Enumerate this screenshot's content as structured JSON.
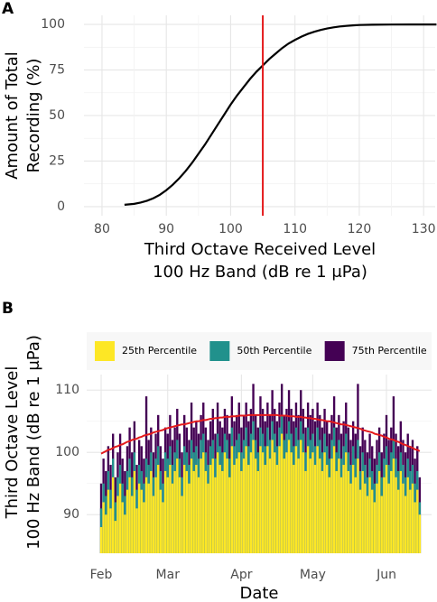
{
  "chart_data": [
    {
      "type": "line",
      "panel_label": "A",
      "ylabel": [
        "Amount of Total",
        "Recording (%)"
      ],
      "xlabel": [
        "Third Octave Received Level",
        "100 Hz Band (dB re 1 μPa)"
      ],
      "color": "#000000",
      "x": [
        83.5,
        85,
        86,
        87,
        88,
        89,
        90,
        91,
        92,
        93,
        94,
        95,
        96,
        97,
        98,
        99,
        100,
        101,
        102,
        103,
        104,
        105,
        106,
        107,
        108,
        109,
        110,
        111,
        112,
        113,
        114,
        115,
        116,
        117,
        118,
        119,
        120,
        122,
        125,
        128,
        132
      ],
      "values": [
        1,
        1.5,
        2.2,
        3.2,
        4.6,
        6.5,
        9,
        12,
        15.5,
        19.5,
        24,
        29,
        34,
        39.5,
        45,
        50.5,
        56,
        61,
        65.5,
        70,
        74,
        77.5,
        81,
        84,
        87,
        89.5,
        91.5,
        93.3,
        94.8,
        96,
        97,
        97.8,
        98.4,
        98.9,
        99.2,
        99.5,
        99.7,
        99.85,
        99.95,
        100,
        100
      ],
      "vlines": [
        105
      ],
      "vline_color": "#e41a1c",
      "xlim": [
        77.2,
        131.8
      ],
      "xticks": [
        80,
        90,
        100,
        110,
        120,
        130
      ],
      "ylim": [
        -5,
        105
      ],
      "yticks": [
        0,
        25,
        50,
        75,
        100
      ],
      "grid": true
    },
    {
      "type": "bar",
      "panel_label": "B",
      "ylabel": [
        "Third Octave Level",
        "100 Hz Band (dB re 1 μPa)"
      ],
      "xlabel": "Date",
      "categories": [
        "Feb",
        null,
        null,
        null,
        null,
        null,
        null,
        null,
        null,
        null,
        null,
        null,
        null,
        null,
        null,
        null,
        null,
        null,
        null,
        null,
        null,
        null,
        null,
        null,
        null,
        null,
        null,
        null,
        "Mar",
        null,
        null,
        null,
        null,
        null,
        null,
        null,
        null,
        null,
        null,
        null,
        null,
        null,
        null,
        null,
        null,
        null,
        null,
        null,
        null,
        null,
        null,
        null,
        null,
        null,
        null,
        null,
        null,
        null,
        null,
        "Apr",
        null,
        null,
        null,
        null,
        null,
        null,
        null,
        null,
        null,
        null,
        null,
        null,
        null,
        null,
        null,
        null,
        null,
        null,
        null,
        null,
        null,
        null,
        null,
        null,
        null,
        null,
        null,
        null,
        null,
        "May",
        null,
        null,
        null,
        null,
        null,
        null,
        null,
        null,
        null,
        null,
        null,
        null,
        null,
        null,
        null,
        null,
        null,
        null,
        null,
        null,
        null,
        null,
        null,
        null,
        null,
        null,
        null,
        null,
        null,
        null,
        "Jun",
        null,
        null,
        null,
        null,
        null,
        null,
        null,
        null,
        null,
        null,
        null,
        null,
        null,
        null
      ],
      "series": [
        {
          "name": "25th Percentile",
          "color": "#fde725",
          "values": [
            88,
            92,
            90,
            94,
            91,
            96,
            89,
            93,
            95,
            92,
            90,
            94,
            96,
            93,
            97,
            91,
            95,
            94,
            92,
            96,
            95,
            97,
            93,
            96,
            98,
            94,
            92,
            97,
            96,
            98,
            95,
            97,
            99,
            96,
            93,
            98,
            97,
            95,
            99,
            97,
            98,
            96,
            99,
            100,
            97,
            95,
            98,
            99,
            96,
            100,
            98,
            97,
            100,
            99,
            96,
            101,
            98,
            99,
            100,
            97,
            99,
            101,
            98,
            100,
            102,
            99,
            97,
            101,
            100,
            98,
            101,
            99,
            102,
            100,
            98,
            101,
            103,
            99,
            100,
            102,
            100,
            98,
            101,
            99,
            102,
            100,
            97,
            101,
            99,
            100,
            98,
            101,
            99,
            97,
            100,
            98,
            96,
            99,
            101,
            97,
            99,
            96,
            98,
            100,
            97,
            95,
            98,
            96,
            99,
            94,
            97,
            95,
            93,
            96,
            94,
            92,
            95,
            97,
            93,
            96,
            98,
            95,
            97,
            99,
            96,
            94,
            97,
            95,
            93,
            96,
            94,
            95,
            92,
            94,
            90
          ]
        },
        {
          "name": "50th Percentile",
          "color": "#21918c",
          "values": [
            91,
            95,
            93,
            97,
            94,
            99,
            92,
            96,
            98,
            95,
            93,
            97,
            99,
            96,
            100,
            94,
            98,
            97,
            95,
            99,
            98,
            100,
            96,
            99,
            101,
            97,
            95,
            100,
            99,
            101,
            98,
            100,
            102,
            99,
            96,
            101,
            100,
            98,
            102,
            100,
            101,
            99,
            102,
            103,
            100,
            98,
            101,
            102,
            99,
            103,
            101,
            100,
            103,
            102,
            99,
            104,
            101,
            102,
            103,
            100,
            102,
            104,
            101,
            103,
            105,
            102,
            100,
            104,
            103,
            101,
            104,
            102,
            105,
            103,
            101,
            104,
            106,
            102,
            103,
            105,
            103,
            101,
            104,
            102,
            105,
            103,
            100,
            104,
            102,
            103,
            101,
            104,
            102,
            100,
            103,
            101,
            99,
            102,
            104,
            100,
            102,
            99,
            101,
            103,
            100,
            98,
            101,
            99,
            102,
            97,
            100,
            98,
            96,
            99,
            97,
            95,
            98,
            100,
            96,
            99,
            101,
            98,
            100,
            102,
            99,
            97,
            100,
            98,
            96,
            99,
            97,
            98,
            95,
            97,
            92
          ]
        },
        {
          "name": "75th Percentile",
          "color": "#440154",
          "values": [
            95,
            99,
            97,
            101,
            98,
            103,
            96,
            100,
            103,
            99,
            97,
            101,
            104,
            100,
            105,
            98,
            102,
            101,
            99,
            109,
            102,
            104,
            100,
            103,
            106,
            101,
            99,
            104,
            103,
            106,
            102,
            104,
            107,
            103,
            100,
            106,
            104,
            102,
            108,
            104,
            105,
            103,
            106,
            108,
            104,
            102,
            105,
            107,
            103,
            108,
            105,
            104,
            107,
            106,
            103,
            109,
            105,
            106,
            108,
            104,
            106,
            108,
            105,
            107,
            111,
            106,
            104,
            109,
            107,
            105,
            108,
            106,
            110,
            107,
            105,
            108,
            111,
            106,
            107,
            110,
            107,
            105,
            108,
            106,
            110,
            107,
            104,
            108,
            106,
            107,
            105,
            108,
            106,
            104,
            107,
            105,
            103,
            106,
            109,
            104,
            106,
            103,
            105,
            108,
            104,
            102,
            105,
            103,
            111,
            101,
            104,
            102,
            100,
            103,
            101,
            99,
            102,
            104,
            100,
            103,
            106,
            102,
            104,
            109,
            103,
            101,
            105,
            102,
            100,
            103,
            101,
            102,
            99,
            101,
            96
          ]
        }
      ],
      "trend": {
        "color": "#e41a1c",
        "values": [
          99.8,
          100.0,
          100.2,
          100.4,
          100.5,
          100.7,
          100.9,
          101.0,
          101.2,
          101.3,
          101.5,
          101.7,
          101.8,
          102.0,
          102.1,
          102.2,
          102.4,
          102.5,
          102.7,
          102.8,
          102.9,
          103.0,
          103.2,
          103.3,
          103.4,
          103.5,
          103.6,
          103.8,
          103.9,
          104.0,
          104.1,
          104.2,
          104.3,
          104.4,
          104.5,
          104.5,
          104.6,
          104.7,
          104.8,
          104.9,
          105.0,
          105.0,
          105.1,
          105.2,
          105.2,
          105.3,
          105.4,
          105.4,
          105.5,
          105.5,
          105.6,
          105.6,
          105.7,
          105.7,
          105.7,
          105.8,
          105.8,
          105.8,
          105.9,
          105.9,
          105.9,
          105.9,
          106.0,
          106.0,
          106.0,
          106.0,
          106.0,
          106.0,
          106.0,
          106.0,
          106.0,
          106.0,
          106.0,
          106.0,
          106.0,
          105.9,
          105.9,
          105.9,
          105.9,
          105.8,
          105.8,
          105.8,
          105.7,
          105.7,
          105.7,
          105.6,
          105.6,
          105.5,
          105.5,
          105.4,
          105.4,
          105.3,
          105.2,
          105.2,
          105.1,
          105.0,
          105.0,
          104.9,
          104.8,
          104.7,
          104.6,
          104.5,
          104.5,
          104.4,
          104.3,
          104.2,
          104.1,
          104.0,
          103.9,
          103.8,
          103.6,
          103.5,
          103.4,
          103.3,
          103.2,
          103.0,
          102.9,
          102.8,
          102.7,
          102.5,
          102.4,
          102.2,
          102.1,
          102.0,
          101.8,
          101.7,
          101.5,
          101.3,
          101.2,
          101.0,
          100.9,
          100.7,
          100.5,
          100.4,
          100.2
        ]
      },
      "ylim": [
        83.8,
        112.5
      ],
      "yticks": [
        90,
        100,
        110
      ],
      "grid": true
    }
  ]
}
